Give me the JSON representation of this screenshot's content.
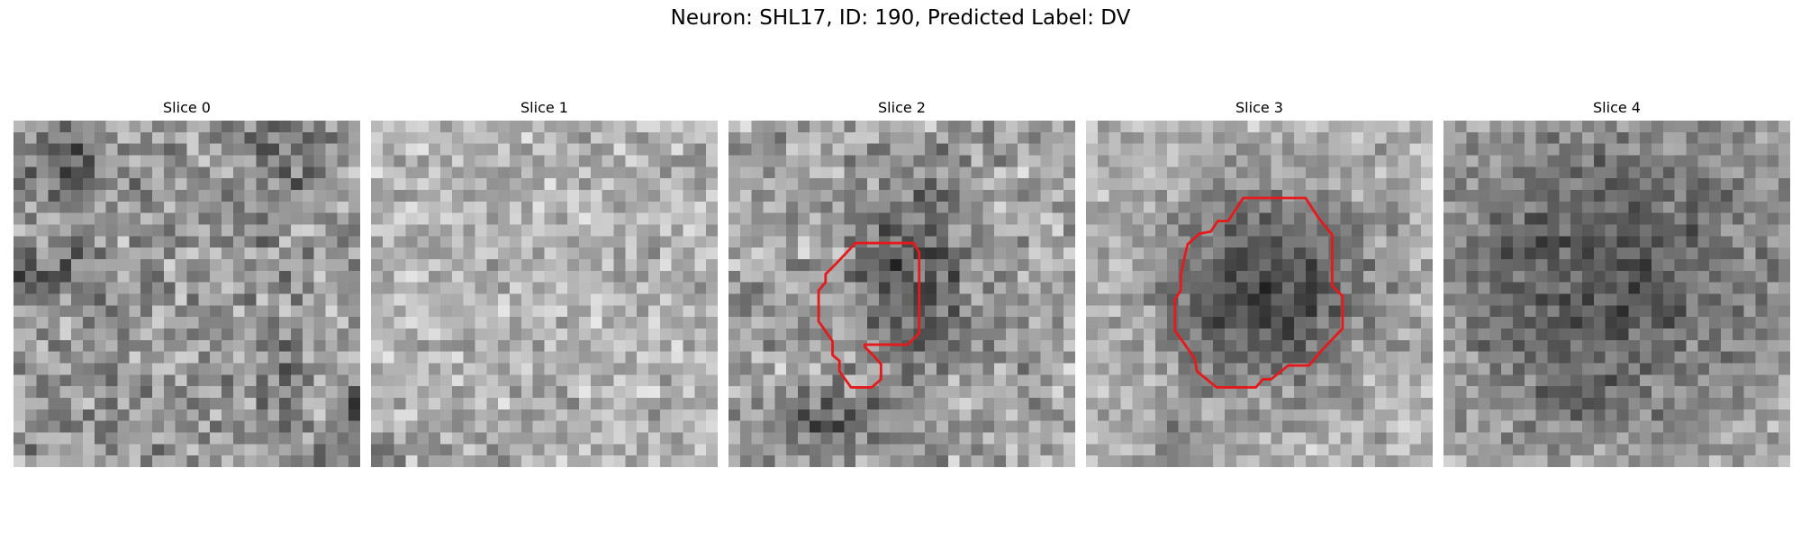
{
  "figure": {
    "title": "Neuron: SHL17, ID: 190, Predicted Label: DV"
  },
  "panels": [
    {
      "title": "Slice 0",
      "contour": false
    },
    {
      "title": "Slice 1",
      "contour": false
    },
    {
      "title": "Slice 2",
      "contour": true
    },
    {
      "title": "Slice 3",
      "contour": true
    },
    {
      "title": "Slice 4",
      "contour": false
    }
  ],
  "colors": {
    "contour": "#e41a1c",
    "colormap": "gray"
  }
}
